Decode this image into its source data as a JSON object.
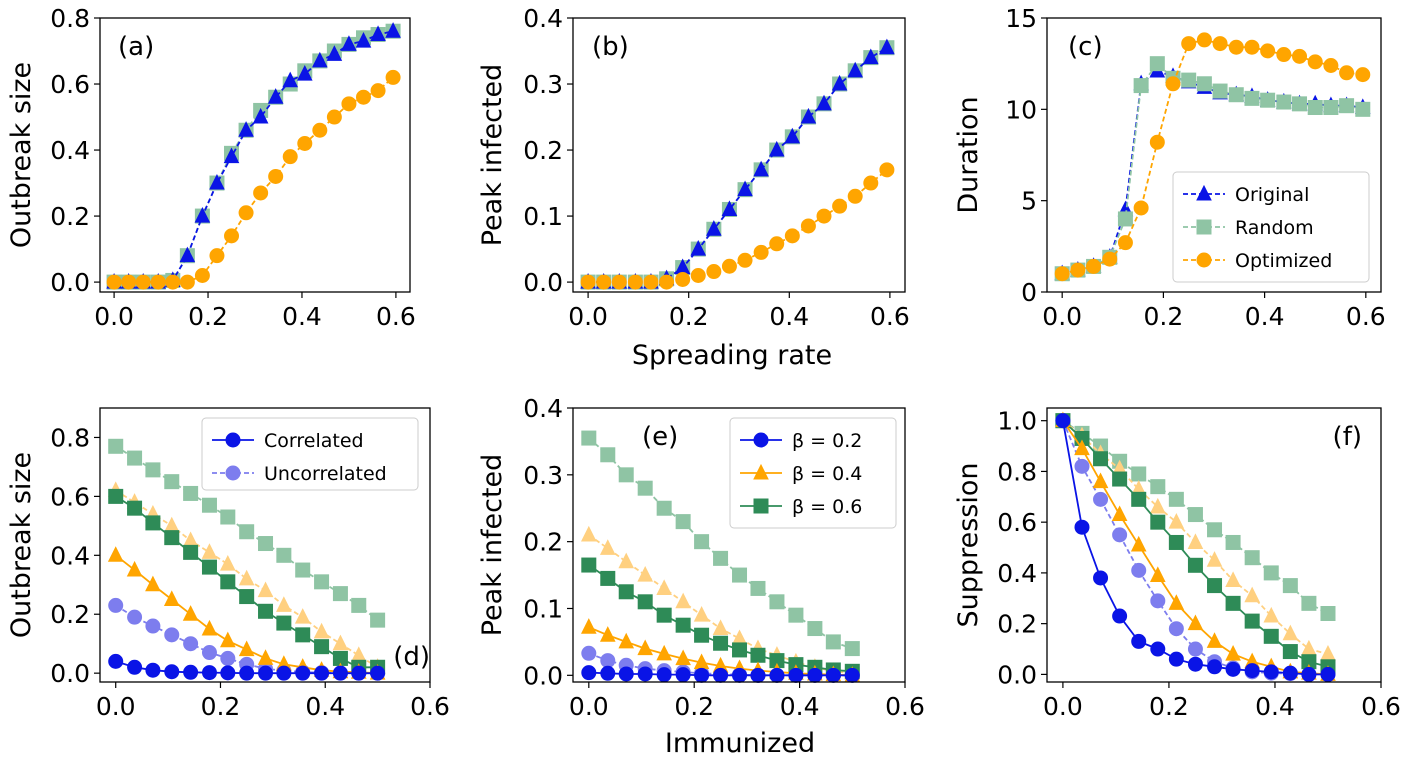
{
  "figure": {
    "xlabel_top": "Spreading rate",
    "xlabel_bottom": "Immunized"
  },
  "colors": {
    "blue": "#0a14e6",
    "blue_light": "#7d7dee",
    "orange": "#ffa500",
    "orange_light": "#ffd080",
    "green": "#2e8b57",
    "green_light": "#8fc4a4",
    "navy": "#1c2a8c",
    "olive": "#6b9a30"
  },
  "chart_data": [
    {
      "id": "a",
      "type": "line",
      "label": "(a)",
      "ylabel": "Outbreak size",
      "xlim": [
        -0.03,
        0.63
      ],
      "ylim": [
        -0.03,
        0.8
      ],
      "xticks": [
        "0.0",
        "0.2",
        "0.4",
        "0.6"
      ],
      "xtick_values": [
        0,
        0.2,
        0.4,
        0.6
      ],
      "yticks": [
        "0.0",
        "0.2",
        "0.4",
        "0.6",
        "0.8"
      ],
      "ytick_values": [
        0,
        0.2,
        0.4,
        0.6,
        0.8
      ],
      "x": [
        0,
        0.031,
        0.062,
        0.094,
        0.125,
        0.156,
        0.188,
        0.219,
        0.25,
        0.281,
        0.312,
        0.344,
        0.375,
        0.406,
        0.438,
        0.469,
        0.5,
        0.531,
        0.562,
        0.594
      ],
      "series": [
        {
          "name": "Random",
          "marker": "square",
          "color": "green_light",
          "dash": true,
          "values": [
            0,
            0,
            0,
            0,
            0.005,
            0.08,
            0.2,
            0.3,
            0.39,
            0.46,
            0.52,
            0.56,
            0.6,
            0.64,
            0.67,
            0.7,
            0.72,
            0.74,
            0.75,
            0.76
          ]
        },
        {
          "name": "Original",
          "marker": "triangle",
          "color": "blue",
          "dash": true,
          "values": [
            0,
            0,
            0,
            0,
            0.005,
            0.08,
            0.2,
            0.3,
            0.38,
            0.46,
            0.5,
            0.56,
            0.61,
            0.63,
            0.67,
            0.69,
            0.72,
            0.73,
            0.75,
            0.76
          ]
        },
        {
          "name": "Optimized",
          "marker": "circle",
          "color": "orange",
          "dash": true,
          "values": [
            0,
            0,
            0,
            0,
            0,
            0,
            0.02,
            0.08,
            0.14,
            0.21,
            0.27,
            0.32,
            0.38,
            0.42,
            0.46,
            0.5,
            0.54,
            0.56,
            0.58,
            0.62
          ]
        }
      ]
    },
    {
      "id": "b",
      "type": "line",
      "label": "(b)",
      "ylabel": "Peak infected",
      "xlim": [
        -0.03,
        0.63
      ],
      "ylim": [
        -0.015,
        0.4
      ],
      "xticks": [
        "0.0",
        "0.2",
        "0.4",
        "0.6"
      ],
      "xtick_values": [
        0,
        0.2,
        0.4,
        0.6
      ],
      "yticks": [
        "0.0",
        "0.1",
        "0.2",
        "0.3",
        "0.4"
      ],
      "ytick_values": [
        0,
        0.1,
        0.2,
        0.3,
        0.4
      ],
      "x": [
        0,
        0.031,
        0.062,
        0.094,
        0.125,
        0.156,
        0.188,
        0.219,
        0.25,
        0.281,
        0.312,
        0.344,
        0.375,
        0.406,
        0.438,
        0.469,
        0.5,
        0.531,
        0.562,
        0.594
      ],
      "series": [
        {
          "name": "Random",
          "marker": "square",
          "color": "green_light",
          "dash": true,
          "values": [
            0,
            0,
            0,
            0,
            0,
            0.005,
            0.022,
            0.05,
            0.08,
            0.11,
            0.14,
            0.17,
            0.2,
            0.22,
            0.25,
            0.27,
            0.3,
            0.32,
            0.34,
            0.355
          ]
        },
        {
          "name": "Original",
          "marker": "triangle",
          "color": "blue",
          "dash": true,
          "values": [
            0,
            0,
            0,
            0,
            0,
            0.005,
            0.022,
            0.05,
            0.08,
            0.11,
            0.14,
            0.17,
            0.2,
            0.22,
            0.25,
            0.27,
            0.3,
            0.32,
            0.34,
            0.355
          ]
        },
        {
          "name": "Optimized",
          "marker": "circle",
          "color": "orange",
          "dash": true,
          "values": [
            0,
            0,
            0,
            0,
            0,
            0,
            0.004,
            0.01,
            0.016,
            0.024,
            0.033,
            0.045,
            0.058,
            0.07,
            0.085,
            0.1,
            0.115,
            0.13,
            0.15,
            0.17
          ]
        }
      ]
    },
    {
      "id": "c",
      "type": "line",
      "label": "(c)",
      "ylabel": "Duration",
      "xlim": [
        -0.03,
        0.63
      ],
      "ylim": [
        0,
        15
      ],
      "xticks": [
        "0.0",
        "0.2",
        "0.4",
        "0.6"
      ],
      "xtick_values": [
        0,
        0.2,
        0.4,
        0.6
      ],
      "yticks": [
        "0",
        "5",
        "10",
        "15"
      ],
      "ytick_values": [
        0,
        5,
        10,
        15
      ],
      "legend": {
        "position": "right",
        "entries": [
          "Original",
          "Random",
          "Optimized"
        ]
      },
      "x": [
        0,
        0.031,
        0.062,
        0.094,
        0.125,
        0.156,
        0.188,
        0.219,
        0.25,
        0.281,
        0.312,
        0.344,
        0.375,
        0.406,
        0.438,
        0.469,
        0.5,
        0.531,
        0.562,
        0.594
      ],
      "series": [
        {
          "name": "Original",
          "marker": "triangle",
          "color": "blue",
          "dash": true,
          "values": [
            1,
            1.2,
            1.4,
            1.9,
            4.5,
            11.4,
            12.1,
            11.8,
            11.5,
            11.2,
            10.9,
            10.8,
            10.7,
            10.5,
            10.4,
            10.3,
            10.3,
            10.2,
            10.2,
            10.1
          ]
        },
        {
          "name": "Random",
          "marker": "square",
          "color": "green_light",
          "dash": true,
          "values": [
            1,
            1.2,
            1.4,
            1.9,
            4,
            11.3,
            12.5,
            11.7,
            11.6,
            11.4,
            11,
            10.8,
            10.6,
            10.5,
            10.4,
            10.3,
            10.1,
            10.1,
            10.2,
            10
          ]
        },
        {
          "name": "Optimized",
          "marker": "circle",
          "color": "orange",
          "dash": true,
          "values": [
            1,
            1.2,
            1.4,
            1.8,
            2.7,
            4.6,
            8.2,
            11.4,
            13.6,
            13.8,
            13.6,
            13.4,
            13.4,
            13.2,
            13,
            12.9,
            12.6,
            12.4,
            12,
            11.9
          ]
        }
      ]
    },
    {
      "id": "d",
      "type": "line",
      "label": "(d)",
      "ylabel": "Outbreak size",
      "xlim": [
        -0.03,
        0.6
      ],
      "ylim": [
        -0.03,
        0.9
      ],
      "xticks": [
        "0.0",
        "0.2",
        "0.4",
        "0.6"
      ],
      "xtick_values": [
        0,
        0.2,
        0.4,
        0.6
      ],
      "yticks": [
        "0.0",
        "0.2",
        "0.4",
        "0.6",
        "0.8"
      ],
      "ytick_values": [
        0,
        0.2,
        0.4,
        0.6,
        0.8
      ],
      "legend": {
        "position": "top-right",
        "entries": [
          "Correlated",
          "Uncorrelated"
        ]
      },
      "x": [
        0,
        0.036,
        0.071,
        0.107,
        0.143,
        0.179,
        0.214,
        0.25,
        0.286,
        0.321,
        0.357,
        0.393,
        0.429,
        0.464,
        0.5
      ],
      "series": [
        {
          "name": "beta=0.6 uncorrelated",
          "marker": "square",
          "color": "green_light",
          "dash": true,
          "values": [
            0.77,
            0.73,
            0.69,
            0.65,
            0.61,
            0.57,
            0.53,
            0.48,
            0.44,
            0.4,
            0.35,
            0.31,
            0.27,
            0.23,
            0.18
          ]
        },
        {
          "name": "beta=0.4 uncorrelated",
          "marker": "triangle",
          "color": "orange_light",
          "dash": true,
          "values": [
            0.62,
            0.58,
            0.54,
            0.5,
            0.45,
            0.41,
            0.37,
            0.32,
            0.28,
            0.23,
            0.19,
            0.14,
            0.1,
            0.06,
            0.02
          ]
        },
        {
          "name": "beta=0.2 uncorrelated",
          "marker": "circle",
          "color": "blue_light",
          "dash": true,
          "values": [
            0.23,
            0.19,
            0.16,
            0.13,
            0.1,
            0.07,
            0.05,
            0.03,
            0.015,
            0.008,
            0.004,
            0.002,
            0.001,
            0,
            0
          ]
        },
        {
          "name": "beta=0.6 correlated",
          "marker": "square",
          "color": "green",
          "dash": false,
          "values": [
            0.6,
            0.56,
            0.51,
            0.46,
            0.41,
            0.36,
            0.31,
            0.26,
            0.21,
            0.17,
            0.13,
            0.09,
            0.05,
            0.02,
            0.02
          ]
        },
        {
          "name": "beta=0.4 correlated",
          "marker": "triangle",
          "color": "orange",
          "dash": false,
          "values": [
            0.4,
            0.35,
            0.3,
            0.25,
            0.2,
            0.15,
            0.11,
            0.08,
            0.05,
            0.03,
            0.02,
            0.01,
            0.005,
            0.003,
            0
          ]
        },
        {
          "name": "beta=0.2 correlated",
          "marker": "circle",
          "color": "blue",
          "dash": false,
          "values": [
            0.04,
            0.02,
            0.01,
            0.005,
            0.003,
            0.002,
            0.001,
            0,
            0,
            0,
            0,
            0,
            0,
            0,
            0
          ]
        }
      ]
    },
    {
      "id": "e",
      "type": "line",
      "label": "(e)",
      "ylabel": "Peak infected",
      "xlim": [
        -0.03,
        0.6
      ],
      "ylim": [
        -0.01,
        0.4
      ],
      "xticks": [
        "0.0",
        "0.2",
        "0.4",
        "0.6"
      ],
      "xtick_values": [
        0,
        0.2,
        0.4,
        0.6
      ],
      "yticks": [
        "0.0",
        "0.1",
        "0.2",
        "0.3",
        "0.4"
      ],
      "ytick_values": [
        0,
        0.1,
        0.2,
        0.3,
        0.4
      ],
      "legend": {
        "position": "top-right",
        "entries": [
          "β = 0.2",
          "β = 0.4",
          "β = 0.6"
        ]
      },
      "x": [
        0,
        0.036,
        0.071,
        0.107,
        0.143,
        0.179,
        0.214,
        0.25,
        0.286,
        0.321,
        0.357,
        0.393,
        0.429,
        0.464,
        0.5
      ],
      "series": [
        {
          "name": "beta=0.6 uncorrelated",
          "marker": "square",
          "color": "green_light",
          "dash": true,
          "values": [
            0.355,
            0.33,
            0.3,
            0.28,
            0.25,
            0.23,
            0.2,
            0.175,
            0.15,
            0.13,
            0.11,
            0.09,
            0.07,
            0.05,
            0.04
          ]
        },
        {
          "name": "beta=0.4 uncorrelated",
          "marker": "triangle",
          "color": "orange_light",
          "dash": true,
          "values": [
            0.21,
            0.19,
            0.17,
            0.15,
            0.13,
            0.11,
            0.09,
            0.07,
            0.055,
            0.04,
            0.03,
            0.02,
            0.012,
            0.006,
            0.003
          ]
        },
        {
          "name": "beta=0.2 uncorrelated",
          "marker": "circle",
          "color": "blue_light",
          "dash": true,
          "values": [
            0.033,
            0.022,
            0.015,
            0.01,
            0.007,
            0.005,
            0.003,
            0.002,
            0.001,
            0,
            0,
            0,
            0,
            0,
            0
          ]
        },
        {
          "name": "beta=0.6 correlated",
          "marker": "square",
          "color": "green",
          "dash": false,
          "values": [
            0.165,
            0.145,
            0.125,
            0.11,
            0.09,
            0.075,
            0.06,
            0.048,
            0.038,
            0.03,
            0.022,
            0.016,
            0.012,
            0.008,
            0.006
          ]
        },
        {
          "name": "beta=0.4 correlated",
          "marker": "triangle",
          "color": "orange",
          "dash": false,
          "values": [
            0.072,
            0.06,
            0.05,
            0.04,
            0.032,
            0.025,
            0.019,
            0.014,
            0.01,
            0.007,
            0.005,
            0.003,
            0.002,
            0.001,
            0
          ]
        },
        {
          "name": "beta=0.2 correlated",
          "marker": "circle",
          "color": "blue",
          "dash": false,
          "values": [
            0.004,
            0.003,
            0.002,
            0.002,
            0.001,
            0.001,
            0,
            0,
            0,
            0,
            0,
            0,
            0,
            0,
            0
          ]
        }
      ]
    },
    {
      "id": "f",
      "type": "line",
      "label": "(f)",
      "ylabel": "Suppression",
      "xlim": [
        -0.03,
        0.6
      ],
      "ylim": [
        -0.03,
        1.05
      ],
      "xticks": [
        "0.0",
        "0.2",
        "0.4",
        "0.6"
      ],
      "xtick_values": [
        0,
        0.2,
        0.4,
        0.6
      ],
      "yticks": [
        "0.0",
        "0.2",
        "0.4",
        "0.6",
        "0.8",
        "1.0"
      ],
      "ytick_values": [
        0,
        0.2,
        0.4,
        0.6,
        0.8,
        1.0
      ],
      "x": [
        0,
        0.036,
        0.071,
        0.107,
        0.143,
        0.179,
        0.214,
        0.25,
        0.286,
        0.321,
        0.357,
        0.393,
        0.429,
        0.464,
        0.5
      ],
      "series": [
        {
          "name": "beta=0.6 uncorrelated",
          "marker": "square",
          "color": "green_light",
          "dash": true,
          "values": [
            1,
            0.95,
            0.9,
            0.84,
            0.79,
            0.74,
            0.69,
            0.63,
            0.57,
            0.52,
            0.46,
            0.4,
            0.35,
            0.28,
            0.24
          ]
        },
        {
          "name": "beta=0.4 uncorrelated",
          "marker": "triangle",
          "color": "orange_light",
          "dash": true,
          "values": [
            1,
            0.94,
            0.87,
            0.81,
            0.73,
            0.66,
            0.6,
            0.52,
            0.45,
            0.37,
            0.31,
            0.23,
            0.16,
            0.1,
            0.08
          ]
        },
        {
          "name": "beta=0.2 uncorrelated",
          "marker": "circle",
          "color": "blue_light",
          "dash": true,
          "values": [
            1,
            0.82,
            0.69,
            0.55,
            0.41,
            0.29,
            0.18,
            0.1,
            0.05,
            0.025,
            0.01,
            0.005,
            0.003,
            0,
            0
          ]
        },
        {
          "name": "beta=0.6 correlated",
          "marker": "square",
          "color": "green",
          "dash": false,
          "values": [
            1,
            0.93,
            0.85,
            0.77,
            0.69,
            0.6,
            0.52,
            0.43,
            0.35,
            0.28,
            0.21,
            0.15,
            0.09,
            0.05,
            0.03
          ]
        },
        {
          "name": "beta=0.4 correlated",
          "marker": "triangle",
          "color": "orange",
          "dash": false,
          "values": [
            1,
            0.89,
            0.76,
            0.63,
            0.51,
            0.39,
            0.28,
            0.2,
            0.13,
            0.08,
            0.05,
            0.03,
            0.01,
            0.005,
            0
          ]
        },
        {
          "name": "beta=0.2 correlated",
          "marker": "circle",
          "color": "blue",
          "dash": false,
          "values": [
            1,
            0.58,
            0.38,
            0.23,
            0.13,
            0.1,
            0.06,
            0.04,
            0.03,
            0.02,
            0.015,
            0.01,
            0.005,
            0,
            0
          ]
        }
      ]
    }
  ]
}
